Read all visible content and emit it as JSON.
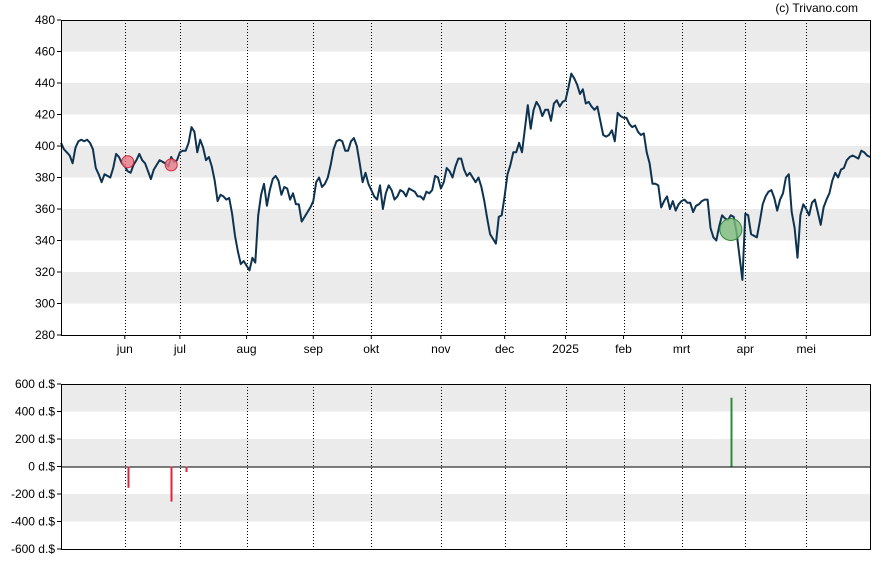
{
  "copyright": "(c) Trivano.com",
  "colors": {
    "band": "#ebebeb",
    "price_line": "#0e3350",
    "sell": "#d8283e",
    "buy": "#2e8b3a",
    "sell_marker": "#e87a86",
    "buy_marker": "#7dbb7d"
  },
  "chart_data": [
    {
      "type": "line",
      "x_tick_labels": [
        "jun",
        "jul",
        "aug",
        "sep",
        "okt",
        "nov",
        "dec",
        "2025",
        "feb",
        "mrt",
        "apr",
        "mei"
      ],
      "y_tick_labels": [
        "280",
        "300",
        "320",
        "340",
        "360",
        "380",
        "400",
        "420",
        "440",
        "460",
        "480"
      ],
      "ylim": [
        280,
        480
      ],
      "x_ticks_at_day": [
        22,
        41,
        64,
        87,
        107,
        131,
        153,
        174,
        194,
        214,
        236,
        257
      ],
      "grid": "horizontal bands + dotted vertical month lines",
      "series": [
        {
          "values": [
            402,
            398,
            396,
            394,
            389,
            399,
            403,
            404,
            403,
            404,
            402,
            398,
            386,
            382,
            377,
            382,
            381,
            380,
            386,
            395,
            393,
            389,
            387,
            384,
            383,
            388,
            391,
            395,
            391,
            389,
            384,
            379,
            385,
            388,
            391,
            390,
            389,
            387,
            393,
            390,
            391,
            396,
            397,
            397,
            402,
            412,
            409,
            396,
            404,
            399,
            391,
            393,
            387,
            378,
            365,
            369,
            368,
            366,
            367,
            357,
            343,
            333,
            325,
            327,
            324,
            321,
            329,
            326,
            356,
            369,
            376,
            362,
            372,
            379,
            381,
            378,
            369,
            374,
            373,
            366,
            370,
            363,
            363,
            352,
            355,
            358,
            361,
            365,
            377,
            380,
            374,
            376,
            380,
            388,
            398,
            403,
            404,
            403,
            397,
            397,
            403,
            405,
            400,
            389,
            377,
            383,
            376,
            372,
            368,
            366,
            375,
            360,
            370,
            375,
            372,
            366,
            368,
            372,
            371,
            368,
            373,
            372,
            371,
            368,
            368,
            366,
            371,
            370,
            372,
            381,
            380,
            373,
            377,
            386,
            384,
            380,
            387,
            392,
            392,
            385,
            381,
            383,
            380,
            377,
            380,
            374,
            365,
            354,
            344,
            341,
            338,
            355,
            356,
            368,
            382,
            388,
            396,
            396,
            402,
            396,
            411,
            426,
            411,
            423,
            428,
            425,
            419,
            423,
            423,
            416,
            427,
            429,
            425,
            428,
            429,
            437,
            446,
            443,
            439,
            433,
            436,
            427,
            428,
            425,
            423,
            425,
            416,
            407,
            406,
            407,
            410,
            403,
            421,
            419,
            418,
            418,
            414,
            412,
            413,
            409,
            407,
            408,
            396,
            389,
            376,
            376,
            375,
            361,
            365,
            368,
            360,
            365,
            359,
            363,
            365,
            366,
            364,
            364,
            358,
            362,
            363,
            365,
            366,
            366,
            348,
            342,
            340,
            349,
            356,
            354,
            353,
            356,
            355,
            345,
            330,
            315,
            357,
            356,
            344,
            343,
            342,
            352,
            363,
            368,
            371,
            372,
            367,
            359,
            366,
            370,
            380,
            382,
            358,
            348,
            329,
            356,
            363,
            360,
            356,
            364,
            366,
            358,
            350,
            361,
            366,
            370,
            378,
            383,
            380,
            385,
            386,
            391,
            393,
            394,
            393,
            392,
            397,
            396,
            394,
            393
          ]
        }
      ],
      "trade_markers": [
        {
          "day": 23,
          "value": 390,
          "kind": "sell"
        },
        {
          "day": 38,
          "value": 388,
          "kind": "sell"
        },
        {
          "day": 231,
          "value": 347,
          "kind": "buy"
        }
      ]
    },
    {
      "type": "bar",
      "y_tick_labels": [
        "600 d.$",
        "400 d.$",
        "200 d.$",
        "0 d.$",
        "-200 d.$",
        "-400 d.$",
        "-600 d.$"
      ],
      "ylim": [
        -600,
        600
      ],
      "values": [
        {
          "day": 23,
          "value": -155,
          "kind": "sell"
        },
        {
          "day": 38,
          "value": -255,
          "kind": "sell"
        },
        {
          "day": 43,
          "value": -40,
          "kind": "sell"
        },
        {
          "day": 231,
          "value": 500,
          "kind": "buy"
        }
      ]
    }
  ]
}
